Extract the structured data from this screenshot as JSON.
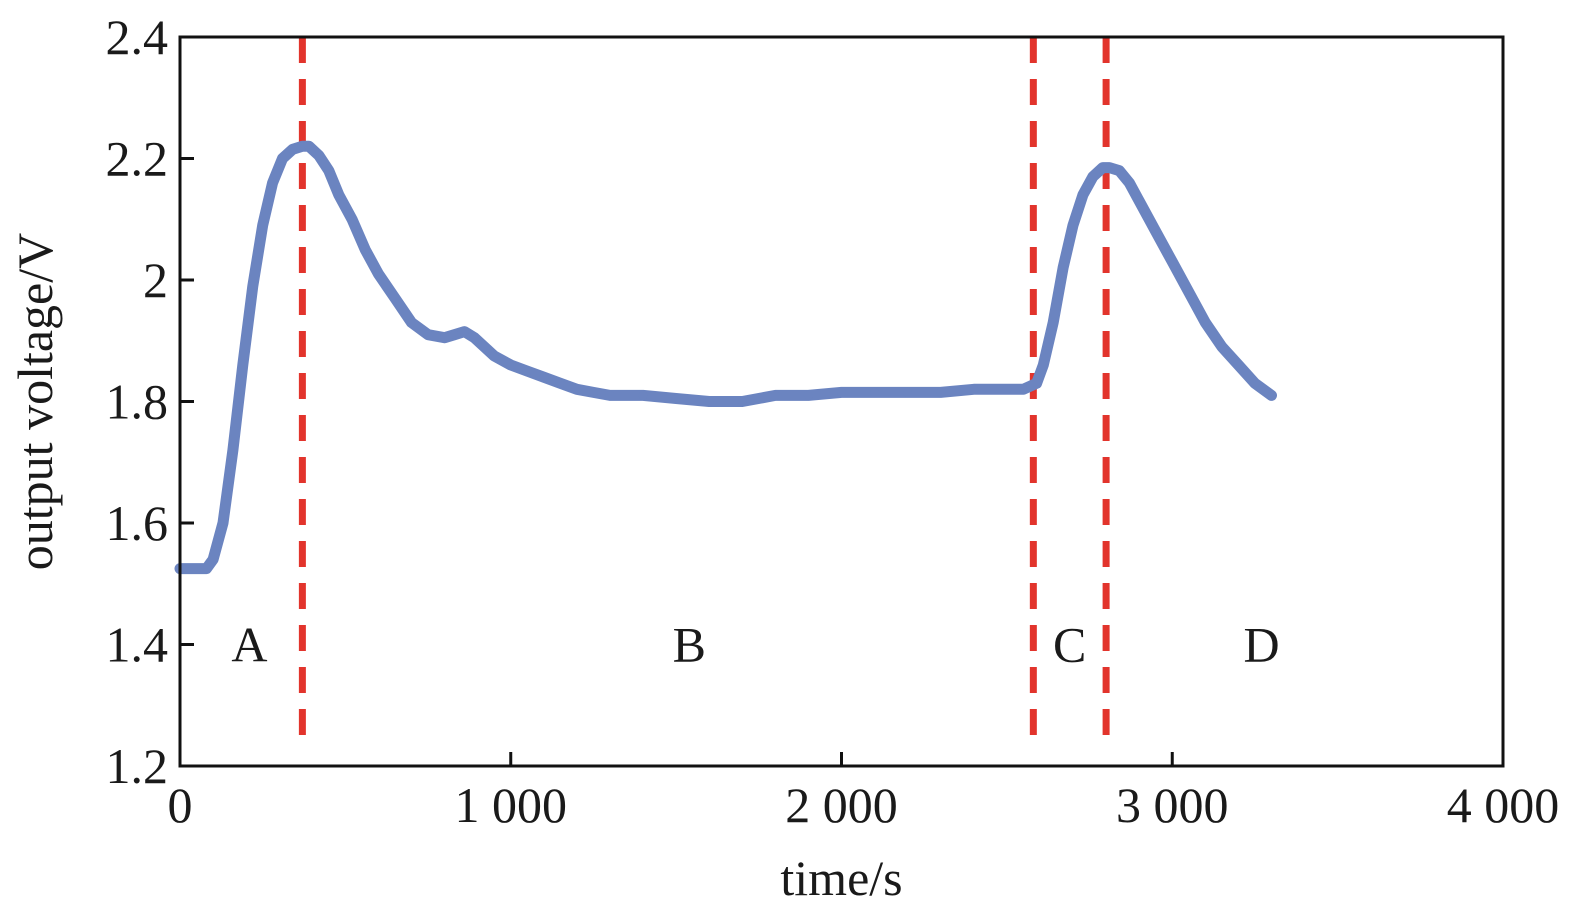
{
  "chart_data": {
    "type": "line",
    "title": "",
    "xlabel": "time/s",
    "ylabel": "output voltage/V",
    "xlim": [
      0,
      4000
    ],
    "ylim": [
      1.2,
      2.4
    ],
    "x_ticks": [
      0,
      1000,
      2000,
      3000,
      4000
    ],
    "x_tick_labels": [
      "0",
      "1 000",
      "2 000",
      "3 000",
      "4 000"
    ],
    "y_ticks": [
      1.2,
      1.4,
      1.6,
      1.8,
      2.0,
      2.2,
      2.4
    ],
    "y_tick_labels": [
      "1.2",
      "1.4",
      "1.6",
      "1.8",
      "2",
      "2.2",
      "2.4"
    ],
    "grid": false,
    "series": [
      {
        "color": "#6b84c0",
        "x": [
          0,
          40,
          80,
          100,
          130,
          160,
          190,
          220,
          250,
          280,
          310,
          340,
          370,
          390,
          420,
          450,
          480,
          520,
          560,
          600,
          650,
          700,
          750,
          800,
          830,
          860,
          890,
          920,
          950,
          1000,
          1050,
          1100,
          1150,
          1200,
          1250,
          1300,
          1400,
          1500,
          1600,
          1700,
          1800,
          1900,
          2000,
          2100,
          2200,
          2300,
          2400,
          2500,
          2550,
          2590,
          2610,
          2640,
          2670,
          2700,
          2730,
          2760,
          2790,
          2810,
          2840,
          2870,
          2900,
          2950,
          3000,
          3050,
          3100,
          3150,
          3200,
          3250,
          3300
        ],
        "values": [
          1.525,
          1.525,
          1.525,
          1.54,
          1.6,
          1.72,
          1.86,
          1.99,
          2.09,
          2.16,
          2.2,
          2.215,
          2.22,
          2.22,
          2.205,
          2.18,
          2.14,
          2.1,
          2.05,
          2.01,
          1.97,
          1.93,
          1.91,
          1.905,
          1.91,
          1.915,
          1.905,
          1.89,
          1.875,
          1.86,
          1.85,
          1.84,
          1.83,
          1.82,
          1.815,
          1.81,
          1.81,
          1.805,
          1.8,
          1.8,
          1.81,
          1.81,
          1.815,
          1.815,
          1.815,
          1.815,
          1.82,
          1.82,
          1.82,
          1.83,
          1.86,
          1.93,
          2.02,
          2.09,
          2.14,
          2.17,
          2.185,
          2.185,
          2.18,
          2.16,
          2.13,
          2.08,
          2.03,
          1.98,
          1.93,
          1.89,
          1.86,
          1.83,
          1.81
        ]
      }
    ],
    "vlines": {
      "color": "#e2342c",
      "style": "dashed",
      "x": [
        370,
        2580,
        2800
      ]
    },
    "annotations": [
      {
        "text": "A",
        "x": 210,
        "y": 1.4
      },
      {
        "text": "B",
        "x": 1540,
        "y": 1.4
      },
      {
        "text": "C",
        "x": 2690,
        "y": 1.4
      },
      {
        "text": "D",
        "x": 3270,
        "y": 1.4
      }
    ]
  }
}
